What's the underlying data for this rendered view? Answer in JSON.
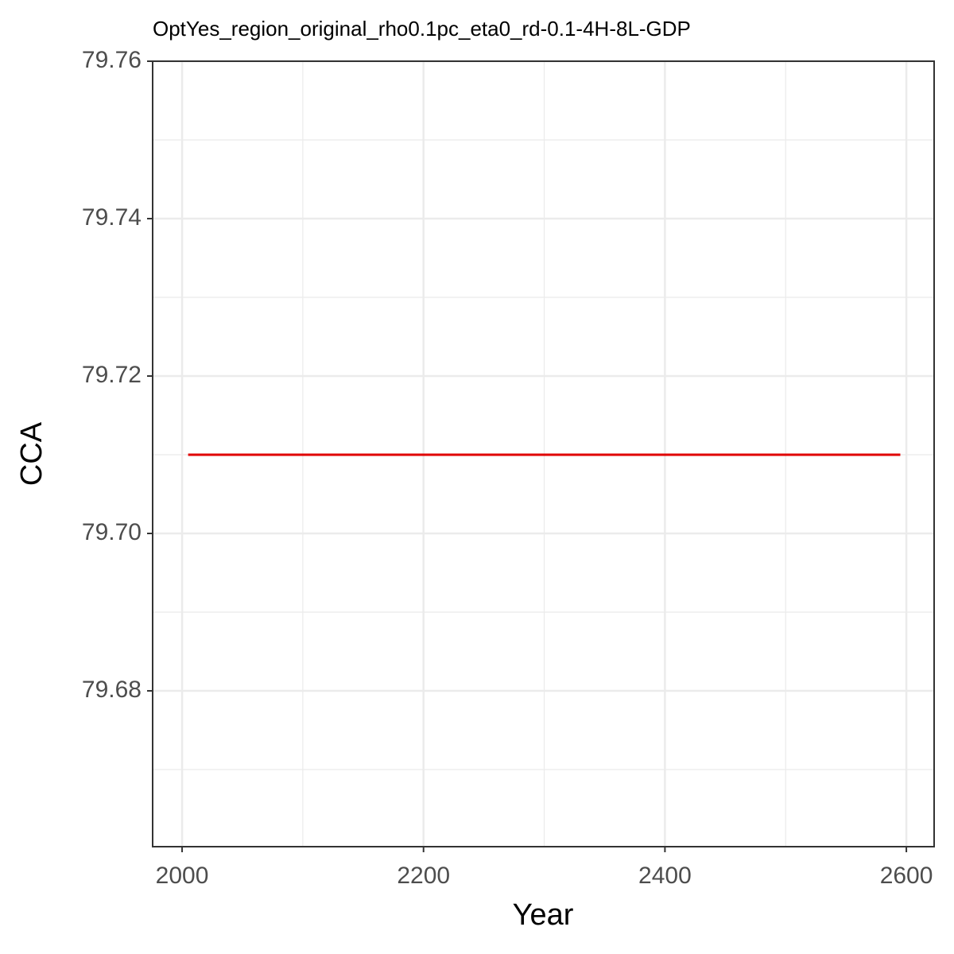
{
  "chart_data": {
    "type": "line",
    "title": "OptYes_region_original_rho0.1pc_eta0_rd-0.1-4H-8L-GDP",
    "x_label": "Year",
    "y_label": "CCA",
    "x": [
      2005,
      2595
    ],
    "series": [
      {
        "color": "#e00000",
        "values": [
          79.71,
          79.71
        ]
      }
    ],
    "xlim": [
      1975.6,
      2623
    ],
    "xticks": [
      2000,
      2200,
      2400,
      2600
    ],
    "ylim": [
      79.6602,
      79.76
    ],
    "yticks": [
      {
        "value": 79.68,
        "label": "79.68"
      },
      {
        "value": 79.7,
        "label": "79.70"
      },
      {
        "value": 79.72,
        "label": "79.72"
      },
      {
        "value": 79.74,
        "label": "79.74"
      },
      {
        "value": 79.76,
        "label": "79.76"
      }
    ],
    "grid": true
  }
}
